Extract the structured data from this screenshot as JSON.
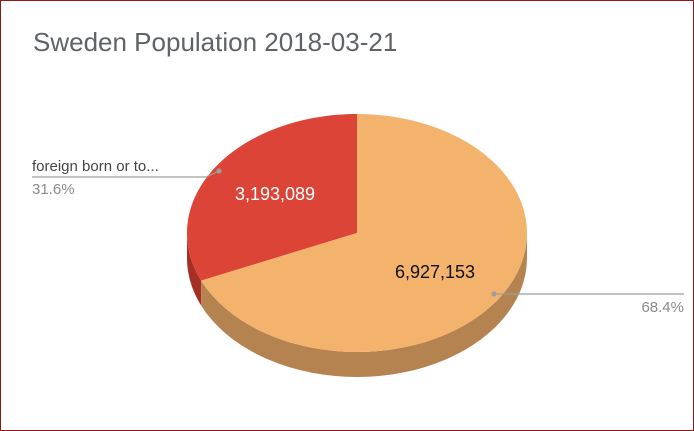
{
  "chart_data": {
    "type": "pie",
    "style": "3d",
    "title": "Sweden Population 2018-03-21",
    "slices": [
      {
        "label": "foreign born or to...",
        "value": 3193089,
        "value_label": "3,193,089",
        "percent_label": "31.6%",
        "color": "#dc4437",
        "side_color": "#a52f25",
        "value_label_color": "#ffffff"
      },
      {
        "label": "",
        "value": 6927153,
        "value_label": "6,927,153",
        "percent_label": "68.4%",
        "color": "#f4b36d",
        "side_color": "#b5834f",
        "value_label_color": "#111111"
      }
    ],
    "legend": "none"
  },
  "colors": {
    "frame_border": "#8b1a1a",
    "title": "#5f6368",
    "leader_line": "#9e9e9e"
  }
}
